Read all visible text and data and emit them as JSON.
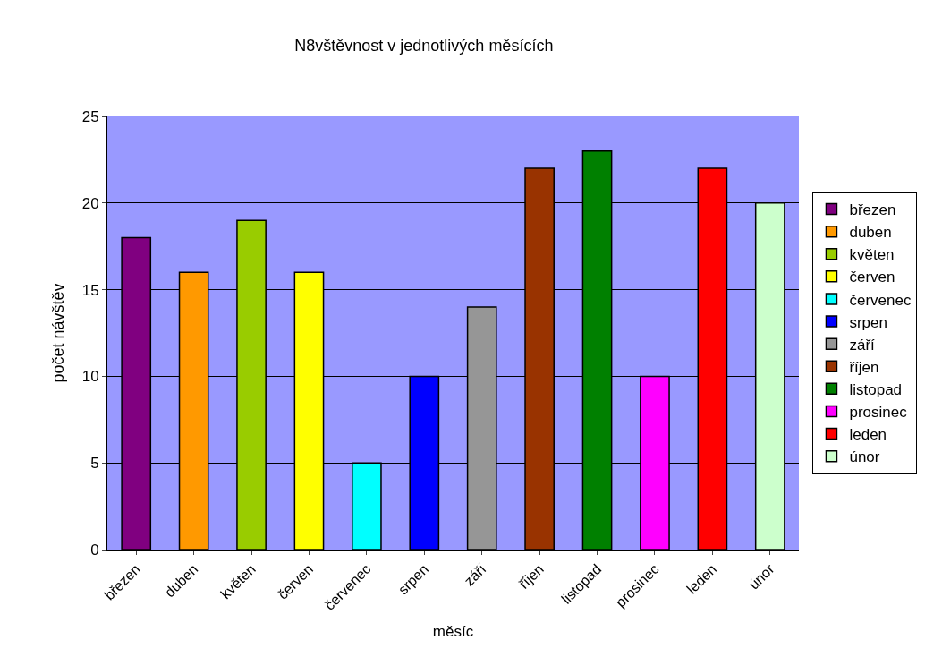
{
  "chart_data": {
    "type": "bar",
    "title": "N8vštěvnost v jednotlivých měsících",
    "xlabel": "měsíc",
    "ylabel": "počet návštěv",
    "categories": [
      "březen",
      "duben",
      "květen",
      "červen",
      "červenec",
      "srpen",
      "září",
      "říjen",
      "listopad",
      "prosinec",
      "leden",
      "únor"
    ],
    "series": [
      {
        "name": "březen",
        "color": "#800080",
        "values": [
          18,
          null,
          null,
          null,
          null,
          null,
          null,
          null,
          null,
          null,
          null,
          null
        ]
      },
      {
        "name": "duben",
        "color": "#ff9900",
        "values": [
          null,
          16,
          null,
          null,
          null,
          null,
          null,
          null,
          null,
          null,
          null,
          null
        ]
      },
      {
        "name": "květen",
        "color": "#99cc00",
        "values": [
          null,
          null,
          19,
          null,
          null,
          null,
          null,
          null,
          null,
          null,
          null,
          null
        ]
      },
      {
        "name": "červen",
        "color": "#ffff00",
        "values": [
          null,
          null,
          null,
          16,
          null,
          null,
          null,
          null,
          null,
          null,
          null,
          null
        ]
      },
      {
        "name": "červenec",
        "color": "#00ffff",
        "values": [
          null,
          null,
          null,
          null,
          5,
          null,
          null,
          null,
          null,
          null,
          null,
          null
        ]
      },
      {
        "name": "srpen",
        "color": "#0000ff",
        "values": [
          null,
          null,
          null,
          null,
          null,
          10,
          null,
          null,
          null,
          null,
          null,
          null
        ]
      },
      {
        "name": "září",
        "color": "#969696",
        "values": [
          null,
          null,
          null,
          null,
          null,
          null,
          14,
          null,
          null,
          null,
          null,
          null
        ]
      },
      {
        "name": "říjen",
        "color": "#993300",
        "values": [
          null,
          null,
          null,
          null,
          null,
          null,
          null,
          22,
          null,
          null,
          null,
          null
        ]
      },
      {
        "name": "listopad",
        "color": "#008000",
        "values": [
          null,
          null,
          null,
          null,
          null,
          null,
          null,
          null,
          23,
          null,
          null,
          null
        ]
      },
      {
        "name": "prosinec",
        "color": "#ff00ff",
        "values": [
          null,
          null,
          null,
          null,
          null,
          null,
          null,
          null,
          null,
          10,
          null,
          null
        ]
      },
      {
        "name": "leden",
        "color": "#ff0000",
        "values": [
          null,
          null,
          null,
          null,
          null,
          null,
          null,
          null,
          null,
          null,
          22,
          null
        ]
      },
      {
        "name": "únor",
        "color": "#ccffcc",
        "values": [
          null,
          null,
          null,
          null,
          null,
          null,
          null,
          null,
          null,
          null,
          null,
          20
        ]
      }
    ],
    "ylim": [
      0,
      25
    ],
    "yticks": [
      0,
      5,
      10,
      15,
      20,
      25
    ],
    "grid": "y",
    "legend": "right"
  }
}
